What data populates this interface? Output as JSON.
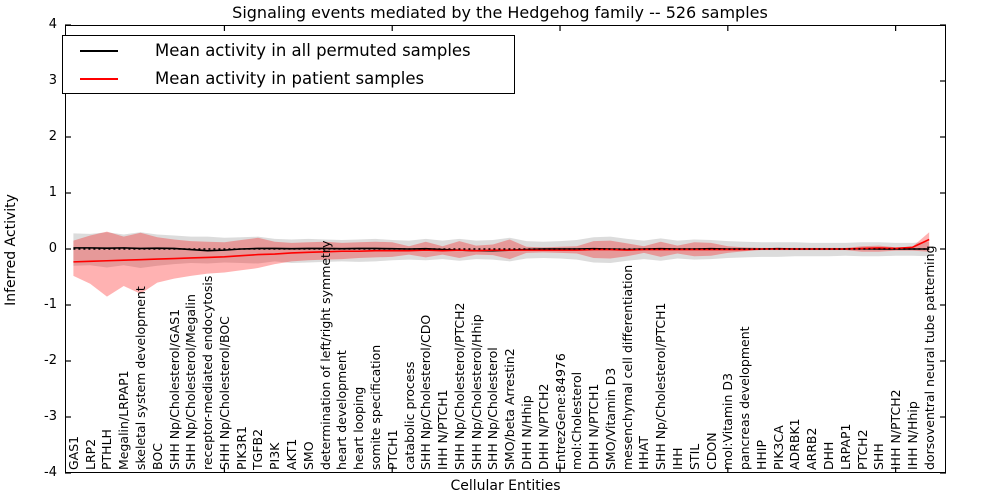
{
  "figure": {
    "title": "Signaling events mediated by the Hedgehog family -- 526 samples"
  },
  "legend": {
    "entries": [
      {
        "label": "Mean activity in all permuted samples",
        "color": "#000000"
      },
      {
        "label": "Mean activity in patient samples",
        "color": "#ff0000"
      }
    ]
  },
  "chart_data": {
    "type": "line",
    "title": "Signaling events mediated by the Hedgehog family -- 526 samples",
    "xlabel": "Cellular Entities",
    "ylabel": "Inferred Activity",
    "ylim": [
      -4,
      4
    ],
    "yticks": [
      -4,
      -3,
      -2,
      -1,
      0,
      1,
      2,
      3,
      4
    ],
    "xtick_indices": [
      9,
      19,
      29,
      39,
      49
    ],
    "grid": false,
    "legend_position": "upper left",
    "categories": [
      "GAS1",
      "LRP2",
      "PTHLH",
      "Megalin/LRPAP1",
      "skeletal system development",
      "BOC",
      "SHH Np/Cholesterol/GAS1",
      "SHH Np/Cholesterol/Megalin",
      "receptor-mediated endocytosis",
      "SHH Np/Cholesterol/BOC",
      "PIK3R1",
      "TGFB2",
      "PI3K",
      "AKT1",
      "SMO",
      "determination of left/right symmetry",
      "heart development",
      "heart looping",
      "somite specification",
      "PTCH1",
      "catabolic process",
      "SHH Np/Cholesterol/CDO",
      "IHH N/PTCH1",
      "SHH Np/Cholesterol/PTCH2",
      "SHH Np/Cholesterol/Hhip",
      "SHH Np/Cholesterol",
      "SMO/beta Arrestin2",
      "DHH N/Hhip",
      "DHH N/PTCH2",
      "EntrezGene:84976",
      "mol:Cholesterol",
      "DHH N/PTCH1",
      "SMO/Vitamin D3",
      "mesenchymal cell differentiation",
      "HHAT",
      "SHH Np/Cholesterol/PTCH1",
      "IHH",
      "STIL",
      "CDON",
      "mol:Vitamin D3",
      "pancreas development",
      "HHIP",
      "PIK3CA",
      "ADRBK1",
      "ARRB2",
      "DHH",
      "LRPAP1",
      "PTCH2",
      "SHH",
      "IHH N/PTCH2",
      "IHH N/Hhip",
      "dorsoventral neural tube patterning"
    ],
    "series": [
      {
        "name": "Mean activity in all permuted samples",
        "color": "#000000",
        "style": "solid",
        "values": [
          0.02,
          0.02,
          0.015,
          0.02,
          0.01,
          0.015,
          0.01,
          -0.01,
          -0.03,
          -0.02,
          0.0,
          0.01,
          0.01,
          0.005,
          0.01,
          0.01,
          0.005,
          0.01,
          0.01,
          0.005,
          0.0,
          0.005,
          -0.01,
          -0.02,
          -0.03,
          -0.03,
          -0.02,
          -0.01,
          0.0,
          0.0,
          0.0,
          0.005,
          0.0,
          -0.01,
          0.0,
          0.005,
          0.0,
          0.0,
          0.005,
          0.0,
          0.0,
          0.0,
          0.005,
          0.0,
          0.0,
          0.0,
          0.0,
          0.005,
          0.0,
          0.0,
          0.0,
          0.0
        ]
      },
      {
        "name": "Mean activity in patient samples",
        "color": "#ff0000",
        "style": "solid",
        "values": [
          -0.23,
          -0.22,
          -0.21,
          -0.2,
          -0.19,
          -0.18,
          -0.17,
          -0.16,
          -0.15,
          -0.14,
          -0.12,
          -0.1,
          -0.09,
          -0.07,
          -0.06,
          -0.05,
          -0.04,
          -0.04,
          -0.03,
          -0.03,
          -0.03,
          -0.02,
          -0.03,
          -0.02,
          -0.03,
          -0.02,
          -0.02,
          -0.02,
          -0.02,
          -0.02,
          -0.02,
          -0.01,
          -0.01,
          -0.02,
          -0.01,
          -0.01,
          -0.01,
          -0.01,
          -0.01,
          -0.01,
          -0.01,
          0.0,
          0.0,
          0.0,
          0.0,
          0.0,
          0.0,
          0.01,
          0.02,
          0.01,
          0.03,
          0.17
        ]
      },
      {
        "name": "zero reference",
        "color": "#000000",
        "style": "dotted",
        "constant": 0
      }
    ],
    "bands": [
      {
        "name": "permuted samples band",
        "color": "rgba(128,128,128,0.28)",
        "upper": [
          0.28,
          0.27,
          0.3,
          0.26,
          0.3,
          0.26,
          0.24,
          0.22,
          0.22,
          0.2,
          0.21,
          0.22,
          0.18,
          0.17,
          0.18,
          0.17,
          0.16,
          0.17,
          0.18,
          0.16,
          0.15,
          0.18,
          0.15,
          0.18,
          0.15,
          0.16,
          0.2,
          0.14,
          0.13,
          0.14,
          0.16,
          0.21,
          0.22,
          0.18,
          0.15,
          0.19,
          0.15,
          0.17,
          0.16,
          0.14,
          0.13,
          0.12,
          0.12,
          0.12,
          0.11,
          0.11,
          0.11,
          0.12,
          0.12,
          0.11,
          0.11,
          0.13
        ],
        "lower": [
          -0.3,
          -0.29,
          -0.33,
          -0.29,
          -0.34,
          -0.3,
          -0.27,
          -0.25,
          -0.26,
          -0.24,
          -0.25,
          -0.26,
          -0.22,
          -0.25,
          -0.24,
          -0.23,
          -0.22,
          -0.23,
          -0.22,
          -0.2,
          -0.19,
          -0.2,
          -0.18,
          -0.21,
          -0.18,
          -0.19,
          -0.22,
          -0.17,
          -0.16,
          -0.17,
          -0.19,
          -0.24,
          -0.25,
          -0.21,
          -0.18,
          -0.21,
          -0.17,
          -0.19,
          -0.18,
          -0.16,
          -0.15,
          -0.14,
          -0.14,
          -0.13,
          -0.13,
          -0.13,
          -0.12,
          -0.13,
          -0.13,
          -0.12,
          -0.12,
          -0.13
        ]
      },
      {
        "name": "patient samples band",
        "color": "rgba(255,0,0,0.30)",
        "upper": [
          0.15,
          0.24,
          0.31,
          0.22,
          0.29,
          0.21,
          0.17,
          0.14,
          0.13,
          0.12,
          0.16,
          0.2,
          0.13,
          0.11,
          0.12,
          0.13,
          0.11,
          0.12,
          0.13,
          0.12,
          0.05,
          0.13,
          0.05,
          0.14,
          0.06,
          0.08,
          0.17,
          0.04,
          0.03,
          0.04,
          0.05,
          0.14,
          0.15,
          0.1,
          0.05,
          0.13,
          0.06,
          0.12,
          0.11,
          0.05,
          0.03,
          0.02,
          0.02,
          0.02,
          0.02,
          0.02,
          0.02,
          0.05,
          0.06,
          0.03,
          0.04,
          0.3
        ],
        "lower": [
          -0.48,
          -0.62,
          -0.85,
          -0.66,
          -0.8,
          -0.6,
          -0.53,
          -0.48,
          -0.44,
          -0.42,
          -0.38,
          -0.34,
          -0.27,
          -0.22,
          -0.2,
          -0.19,
          -0.18,
          -0.16,
          -0.15,
          -0.14,
          -0.1,
          -0.15,
          -0.1,
          -0.16,
          -0.1,
          -0.11,
          -0.18,
          -0.07,
          -0.06,
          -0.07,
          -0.08,
          -0.16,
          -0.17,
          -0.13,
          -0.07,
          -0.14,
          -0.08,
          -0.13,
          -0.12,
          -0.07,
          -0.04,
          -0.02,
          -0.02,
          -0.02,
          -0.02,
          -0.02,
          -0.02,
          -0.05,
          -0.05,
          -0.03,
          -0.03,
          -0.05
        ]
      }
    ]
  }
}
